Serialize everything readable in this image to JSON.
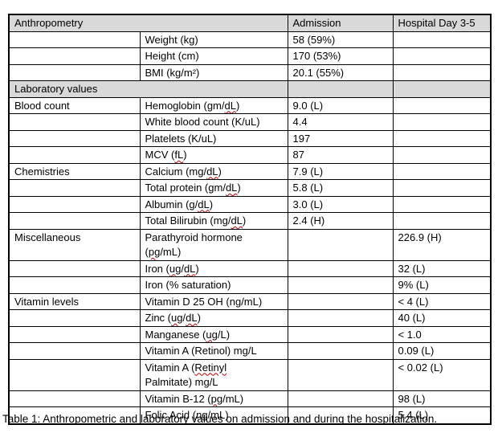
{
  "colors": {
    "page_bg": "#ffffff",
    "text": "#000000",
    "border": "#000000",
    "header_row_bg": "#d9d9d9",
    "spellcheck_underline": "#c00000"
  },
  "table": {
    "header": {
      "left": "Anthropometry",
      "admission": "Admission",
      "day": "Hospital Day 3-5"
    },
    "rows": [
      {
        "kind": "header",
        "left": "Anthropometry",
        "admission": "Admission",
        "day": "Hospital Day 3-5"
      },
      {
        "kind": "data",
        "section": "",
        "label": [
          {
            "t": "Weight (kg)"
          }
        ],
        "admission": "58 (59%)",
        "day": ""
      },
      {
        "kind": "data",
        "section": "",
        "label": [
          {
            "t": "Height (cm)"
          }
        ],
        "admission": "170 (53%)",
        "day": ""
      },
      {
        "kind": "data",
        "section": "",
        "label": [
          {
            "t": "BMI (kg/m²)"
          }
        ],
        "admission": "20.1 (55%)",
        "day": ""
      },
      {
        "kind": "subheader",
        "left": "Laboratory values",
        "admission": "",
        "day": ""
      },
      {
        "kind": "data",
        "section": "Blood count",
        "label": [
          {
            "t": "Hemoglobin (gm/"
          },
          {
            "t": "dL",
            "sp": true
          },
          {
            "t": ")"
          }
        ],
        "admission": "9.0 (L)",
        "day": ""
      },
      {
        "kind": "data",
        "section": "",
        "label": [
          {
            "t": "White blood count (K/uL)"
          }
        ],
        "admission": "4.4",
        "day": ""
      },
      {
        "kind": "data",
        "section": "",
        "label": [
          {
            "t": "Platelets (K/uL)"
          }
        ],
        "admission": "197",
        "day": ""
      },
      {
        "kind": "data",
        "section": "",
        "label": [
          {
            "t": "MCV ("
          },
          {
            "t": "fL",
            "sp": true
          },
          {
            "t": ")"
          }
        ],
        "admission": "87",
        "day": ""
      },
      {
        "kind": "data",
        "section": "Chemistries",
        "label": [
          {
            "t": "Calcium (mg/"
          },
          {
            "t": "dL",
            "sp": true
          },
          {
            "t": ")"
          }
        ],
        "admission": "7.9 (L)",
        "day": ""
      },
      {
        "kind": "data",
        "section": "",
        "label": [
          {
            "t": "Total protein (gm/"
          },
          {
            "t": "dL",
            "sp": true
          },
          {
            "t": ")"
          }
        ],
        "admission": "5.8 (L)",
        "day": ""
      },
      {
        "kind": "data",
        "section": "",
        "label": [
          {
            "t": "Albumin (g/"
          },
          {
            "t": "dL",
            "sp": true
          },
          {
            "t": ")"
          }
        ],
        "admission": "3.0 (L)",
        "day": ""
      },
      {
        "kind": "data",
        "section": "",
        "label": [
          {
            "t": "Total Bilirubin (mg/"
          },
          {
            "t": "dL",
            "sp": true
          },
          {
            "t": ")"
          }
        ],
        "admission": "2.4 (H)",
        "day": ""
      },
      {
        "kind": "data",
        "section": "Miscellaneous",
        "label": [
          {
            "t": "Parathyroid hormone"
          },
          {
            "br": true
          },
          {
            "t": "("
          },
          {
            "t": "pg",
            "sp": true
          },
          {
            "t": "/mL)"
          }
        ],
        "admission": "",
        "day": "226.9 (H)"
      },
      {
        "kind": "data",
        "section": "",
        "label": [
          {
            "t": "Iron ("
          },
          {
            "t": "ug",
            "sp": true
          },
          {
            "t": "/"
          },
          {
            "t": "dL",
            "sp": true
          },
          {
            "t": ")"
          }
        ],
        "admission": "",
        "day": "32 (L)"
      },
      {
        "kind": "data",
        "section": "",
        "label": [
          {
            "t": "Iron (% saturation)"
          }
        ],
        "admission": "",
        "day": "9% (L)"
      },
      {
        "kind": "data",
        "section": "Vitamin levels",
        "label": [
          {
            "t": "Vitamin D 25 OH (ng/mL)"
          }
        ],
        "admission": "",
        "day": "< 4 (L)"
      },
      {
        "kind": "data",
        "section": "",
        "label": [
          {
            "t": "Zinc ("
          },
          {
            "t": "ug",
            "sp": true
          },
          {
            "t": "/"
          },
          {
            "t": "dL",
            "sp": true
          },
          {
            "t": ")"
          }
        ],
        "admission": "",
        "day": "40 (L)"
      },
      {
        "kind": "data",
        "section": "",
        "label": [
          {
            "t": "Manganese ("
          },
          {
            "t": "ug",
            "sp": true
          },
          {
            "t": "/L)"
          }
        ],
        "admission": "",
        "day": "< 1.0"
      },
      {
        "kind": "data",
        "section": "",
        "label": [
          {
            "t": "Vitamin A (Retinol) mg/L"
          }
        ],
        "admission": "",
        "day": "0.09 (L)"
      },
      {
        "kind": "data",
        "section": "",
        "label": [
          {
            "t": "Vitamin A ("
          },
          {
            "t": "Retinyl",
            "sp": true
          },
          {
            "br": true
          },
          {
            "t": "Palmitate) mg/L"
          }
        ],
        "admission": "",
        "day": "< 0.02 (L)"
      },
      {
        "kind": "data",
        "section": "",
        "label": [
          {
            "t": "Vitamin B-12 ("
          },
          {
            "t": "pg",
            "sp": true
          },
          {
            "t": "/mL)"
          }
        ],
        "admission": "",
        "day": "98 (L)"
      },
      {
        "kind": "data",
        "section": "",
        "label": [
          {
            "t": "Folic Acid (ng/mL)"
          }
        ],
        "admission": "",
        "day": "5.4 (L)"
      }
    ]
  },
  "caption": "Table 1: Anthropometric and laboratory values on admission and during the hospitalization."
}
